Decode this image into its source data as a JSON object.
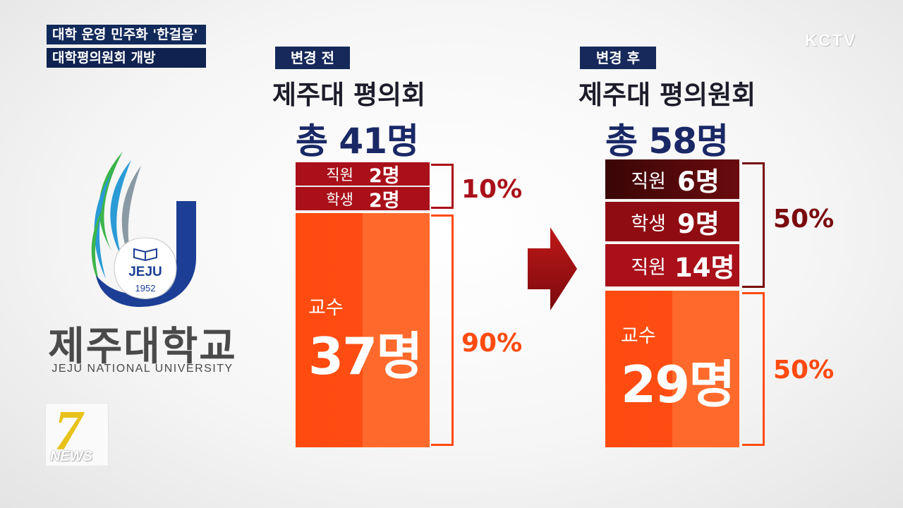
{
  "headline": {
    "line1": "대학 운영 민주화 '한걸음'",
    "line2": "대학평의원회 개방"
  },
  "watermark": "KCTV",
  "logo": {
    "emblem_text": "JEJU",
    "emblem_year": "1952",
    "name_ko": "제주대학교",
    "name_en": "JEJU NATIONAL UNIVERSITY"
  },
  "news_badge": {
    "number": "7",
    "word": "NEWS"
  },
  "before": {
    "tag": "변경 전",
    "title": "제주대 평의회",
    "total": "총 41명",
    "rows": [
      {
        "label": "직원",
        "value": "2명"
      },
      {
        "label": "학생",
        "value": "2명"
      }
    ],
    "professor": {
      "label": "교수",
      "value": "37명"
    },
    "pct_small": "10%",
    "pct_large": "90%"
  },
  "after": {
    "tag": "변경 후",
    "title": "제주대 평의원회",
    "total": "총 58명",
    "rows": [
      {
        "label": "직원",
        "value": "6명"
      },
      {
        "label": "학생",
        "value": "9명"
      },
      {
        "label": "직원",
        "value": "14명"
      }
    ],
    "professor": {
      "label": "교수",
      "value": "29명"
    },
    "pct_small": "50%",
    "pct_large": "50%"
  },
  "colors": {
    "navy": "#16295a",
    "dark_red": "#9c0d14",
    "orange": "#ff4a10",
    "pct_red": "#9c1016",
    "pct_orange": "#ff4a10"
  }
}
